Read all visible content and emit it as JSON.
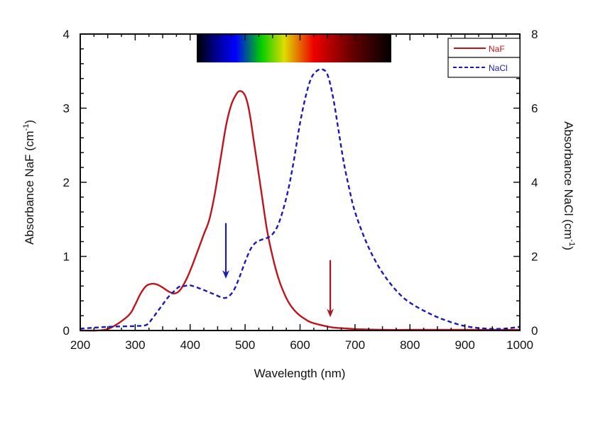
{
  "chart_data": {
    "type": "line",
    "title": "",
    "xlabel": "Wavelength (nm)",
    "ylabel_left": "Absorbance NaF (cm",
    "ylabel_left_sup": "-1",
    "ylabel_left_close": ")",
    "ylabel_right": "Absorbance NaCl (cm",
    "ylabel_right_sup": "-1",
    "ylabel_right_close": ")",
    "xlim": [
      200,
      1000
    ],
    "ylim_left": [
      0,
      4
    ],
    "ylim_right": [
      0,
      8
    ],
    "x_ticks": [
      200,
      300,
      400,
      500,
      600,
      700,
      800,
      900,
      1000
    ],
    "x_tick_labels": [
      "200",
      "300",
      "400",
      "500",
      "600",
      "700",
      "800",
      "900",
      "1000"
    ],
    "y_left_ticks": [
      0,
      1,
      2,
      3,
      4
    ],
    "y_left_tick_labels": [
      "0",
      "1",
      "2",
      "3",
      "4"
    ],
    "y_right_ticks": [
      0,
      2,
      4,
      6,
      8
    ],
    "y_right_tick_labels": [
      "0",
      "2",
      "4",
      "6",
      "8"
    ],
    "grid": false,
    "legend_position": "top-right",
    "series": [
      {
        "name": "NaF",
        "axis": "left",
        "color": "#c0141c",
        "style": "solid",
        "x": [
          200,
          230,
          250,
          270,
          290,
          300,
          310,
          320,
          330,
          340,
          350,
          360,
          370,
          378,
          385,
          395,
          405,
          415,
          425,
          435,
          445,
          455,
          465,
          475,
          485,
          490,
          495,
          500,
          505,
          510,
          515,
          520,
          530,
          540,
          550,
          560,
          570,
          580,
          590,
          600,
          610,
          620,
          640,
          660,
          680,
          700,
          750,
          800,
          850,
          900,
          950,
          1000
        ],
        "y": [
          0.0,
          0.0,
          0.02,
          0.1,
          0.22,
          0.35,
          0.5,
          0.6,
          0.63,
          0.62,
          0.58,
          0.53,
          0.5,
          0.52,
          0.58,
          0.72,
          0.9,
          1.1,
          1.3,
          1.5,
          1.85,
          2.3,
          2.75,
          3.05,
          3.2,
          3.23,
          3.22,
          3.17,
          3.05,
          2.85,
          2.6,
          2.35,
          1.85,
          1.35,
          1.0,
          0.72,
          0.52,
          0.37,
          0.27,
          0.2,
          0.15,
          0.11,
          0.07,
          0.04,
          0.03,
          0.02,
          0.01,
          0.01,
          0.01,
          0.01,
          0.01,
          0.01
        ]
      },
      {
        "name": "NaCl",
        "axis": "right",
        "color": "#1a1ab4",
        "style": "dashed",
        "x": [
          200,
          250,
          300,
          320,
          330,
          340,
          350,
          360,
          370,
          380,
          390,
          400,
          420,
          440,
          460,
          470,
          480,
          490,
          500,
          510,
          520,
          530,
          540,
          550,
          560,
          570,
          580,
          590,
          600,
          610,
          620,
          630,
          640,
          650,
          660,
          670,
          680,
          690,
          700,
          720,
          740,
          760,
          780,
          800,
          830,
          860,
          900,
          940,
          970,
          1000
        ],
        "y": [
          0.05,
          0.1,
          0.12,
          0.15,
          0.3,
          0.5,
          0.7,
          0.9,
          1.05,
          1.18,
          1.2,
          1.22,
          1.12,
          1.0,
          0.88,
          0.92,
          1.1,
          1.45,
          1.85,
          2.2,
          2.38,
          2.45,
          2.5,
          2.6,
          2.85,
          3.3,
          3.9,
          4.7,
          5.6,
          6.3,
          6.8,
          7.0,
          7.05,
          6.9,
          6.3,
          5.4,
          4.5,
          3.8,
          3.2,
          2.4,
          1.8,
          1.35,
          1.0,
          0.75,
          0.5,
          0.3,
          0.12,
          0.05,
          0.05,
          0.1
        ]
      }
    ],
    "annotations": [
      {
        "type": "arrow",
        "color": "#1a1ab4",
        "x": 465,
        "y_top_left_axis": 1.45,
        "y_bottom_left_axis": 0.7,
        "label": ""
      },
      {
        "type": "arrow",
        "color": "#a8141c",
        "x": 655,
        "y_top_left_axis": 0.95,
        "y_bottom_left_axis": 0.18,
        "label": ""
      }
    ],
    "spectrum_bar": {
      "x_range_nm": [
        412,
        766
      ],
      "stops": [
        {
          "at": 0.0,
          "color": "#000000"
        },
        {
          "at": 0.1,
          "color": "#000090"
        },
        {
          "at": 0.2,
          "color": "#0000ff"
        },
        {
          "at": 0.33,
          "color": "#00cc00"
        },
        {
          "at": 0.45,
          "color": "#dddd00"
        },
        {
          "at": 0.6,
          "color": "#ee0000"
        },
        {
          "at": 0.8,
          "color": "#660000"
        },
        {
          "at": 1.0,
          "color": "#000000"
        }
      ]
    }
  }
}
